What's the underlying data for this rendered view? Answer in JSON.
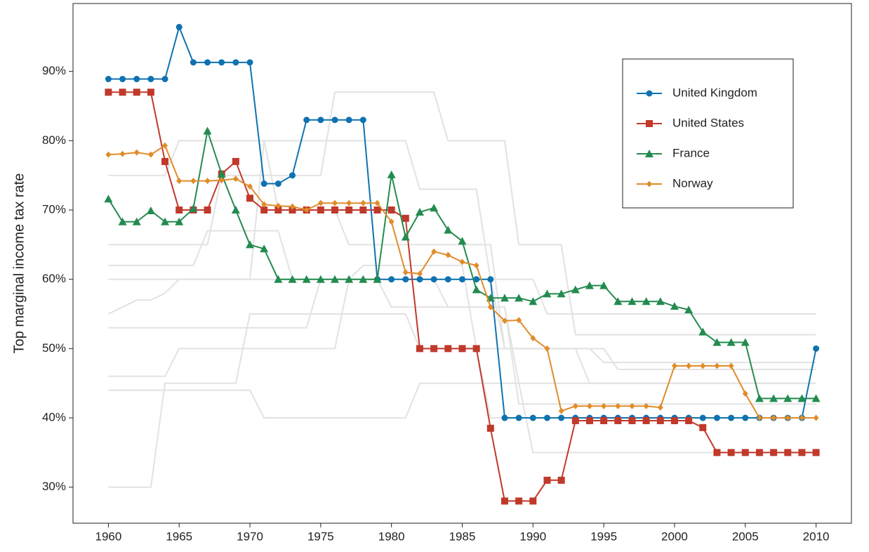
{
  "chart_data": {
    "type": "line",
    "y_label": "Top marginal income tax rate",
    "x": [
      1960,
      1961,
      1962,
      1963,
      1964,
      1965,
      1966,
      1967,
      1968,
      1969,
      1970,
      1971,
      1972,
      1973,
      1974,
      1975,
      1976,
      1977,
      1978,
      1979,
      1980,
      1981,
      1982,
      1983,
      1984,
      1985,
      1986,
      1987,
      1988,
      1989,
      1990,
      1991,
      1992,
      1993,
      1994,
      1995,
      1996,
      1997,
      1998,
      1999,
      2000,
      2001,
      2002,
      2003,
      2004,
      2005,
      2006,
      2007,
      2008,
      2009,
      2010
    ],
    "xlim": [
      1957.5,
      2012.5
    ],
    "xticks": [
      1960,
      1965,
      1970,
      1975,
      1980,
      1985,
      1990,
      1995,
      2000,
      2005,
      2010
    ],
    "ylim": [
      24.8,
      99.8
    ],
    "yticks": [
      {
        "value": 30,
        "label": "30%"
      },
      {
        "value": 40,
        "label": "40%"
      },
      {
        "value": 50,
        "label": "50%"
      },
      {
        "value": 60,
        "label": "60%"
      },
      {
        "value": 70,
        "label": "70%"
      },
      {
        "value": 80,
        "label": "80%"
      },
      {
        "value": 90,
        "label": "90%"
      }
    ],
    "legend_position": "upper right",
    "background_color": "#e2e2e2",
    "background_series": [
      {
        "values": [
          30,
          30,
          30,
          30,
          45,
          45,
          45,
          45,
          45,
          45,
          55,
          55,
          55,
          55,
          55,
          55,
          55,
          55,
          55,
          55,
          55,
          55,
          50,
          50,
          50,
          50,
          50,
          40,
          40,
          40,
          40,
          40,
          40,
          40,
          40,
          40,
          40,
          40,
          40,
          40,
          40,
          40,
          40,
          40,
          40,
          40,
          40,
          40,
          40,
          40,
          40
        ]
      },
      {
        "values": [
          44,
          44,
          44,
          44,
          44,
          44,
          44,
          44,
          44,
          44,
          44,
          40,
          40,
          40,
          40,
          40,
          40,
          40,
          40,
          40,
          40,
          40,
          45,
          45,
          45,
          45,
          45,
          45,
          45,
          45,
          35,
          35,
          35,
          35,
          35,
          35,
          35,
          35,
          35,
          35,
          35,
          35,
          35,
          35,
          35,
          35,
          35,
          35,
          35,
          35,
          35
        ]
      },
      {
        "values": [
          46,
          46,
          46,
          46,
          46,
          50,
          50,
          50,
          50,
          50,
          50,
          50,
          50,
          50,
          50,
          50,
          50,
          60,
          60,
          60,
          60,
          60,
          60,
          60,
          56,
          56,
          56,
          56,
          56,
          45,
          45,
          45,
          45,
          45,
          45,
          45,
          45,
          45,
          45,
          45,
          45,
          45,
          45,
          45,
          45,
          45,
          45,
          45,
          45,
          45,
          45
        ]
      },
      {
        "values": [
          53,
          53,
          53,
          53,
          53,
          53,
          53,
          53,
          53,
          53,
          53,
          53,
          53,
          53,
          53,
          60,
          60,
          60,
          60,
          60,
          60,
          60,
          60,
          60,
          60,
          60,
          60,
          60,
          50,
          50,
          50,
          50,
          50,
          50,
          50,
          48,
          48,
          48,
          48,
          48,
          48,
          48,
          48,
          48,
          48,
          48,
          48,
          48,
          48,
          48,
          48
        ]
      },
      {
        "values": [
          55,
          56,
          57,
          57,
          58,
          60,
          60,
          60,
          60,
          60,
          60,
          60,
          60,
          60,
          60,
          60,
          60,
          60,
          60,
          60,
          56,
          56,
          56,
          56,
          56,
          56,
          56,
          56,
          56,
          42,
          42,
          42,
          42,
          42,
          42,
          42,
          42,
          42,
          42,
          42,
          42,
          42,
          42,
          42,
          42,
          42,
          42,
          42,
          42,
          42,
          42
        ]
      },
      {
        "values": [
          60,
          60,
          60,
          60,
          60,
          60,
          60,
          60,
          60,
          60,
          60,
          80,
          80,
          80,
          80,
          80,
          80,
          80,
          80,
          80,
          80,
          80,
          73,
          73,
          73,
          73,
          73,
          60,
          60,
          60,
          60,
          55,
          55,
          55,
          55,
          55,
          55,
          55,
          55,
          55,
          55,
          55,
          55,
          55,
          55,
          55,
          55,
          55,
          55,
          55,
          55
        ]
      },
      {
        "values": [
          65,
          65,
          65,
          65,
          65,
          65,
          65,
          65,
          75,
          75,
          75,
          75,
          75,
          75,
          75,
          75,
          87,
          87,
          87,
          87,
          87,
          87,
          87,
          87,
          80,
          80,
          80,
          80,
          80,
          65,
          65,
          65,
          65,
          52,
          52,
          52,
          52,
          52,
          52,
          52,
          52,
          52,
          52,
          52,
          52,
          52,
          52,
          52,
          52,
          52,
          52
        ]
      },
      {
        "values": [
          75,
          75,
          75,
          75,
          75,
          80,
          80,
          80,
          80,
          80,
          80,
          80,
          70,
          70,
          70,
          70,
          70,
          65,
          65,
          65,
          65,
          65,
          65,
          65,
          65,
          65,
          65,
          65,
          50,
          50,
          50,
          50,
          50,
          50,
          45,
          45,
          45,
          45,
          45,
          45,
          45,
          45,
          45,
          45,
          45,
          45,
          45,
          45,
          45,
          45,
          45
        ]
      },
      {
        "values": [
          62,
          62,
          62,
          62,
          62,
          62,
          62,
          67,
          67,
          67,
          67,
          67,
          67,
          60,
          60,
          60,
          60,
          60,
          62,
          62,
          62,
          62,
          62,
          62,
          62,
          62,
          50,
          50,
          50,
          50,
          50,
          50,
          50,
          50,
          50,
          50,
          47,
          47,
          47,
          47,
          47,
          47,
          47,
          47,
          47,
          47,
          47,
          47,
          47,
          47,
          47
        ]
      }
    ],
    "series": [
      {
        "name": "United Kingdom",
        "color": "#0f72b0",
        "marker": "circle",
        "values": [
          88.9,
          88.9,
          88.9,
          88.9,
          88.9,
          96.4,
          91.3,
          91.3,
          91.3,
          91.3,
          91.3,
          73.8,
          73.8,
          75,
          83,
          83,
          83,
          83,
          83,
          60,
          60,
          60,
          60,
          60,
          60,
          60,
          60,
          60,
          40,
          40,
          40,
          40,
          40,
          40,
          40,
          40,
          40,
          40,
          40,
          40,
          40,
          40,
          40,
          40,
          40,
          40,
          40,
          40,
          40,
          40,
          50
        ]
      },
      {
        "name": "United States",
        "color": "#c0392b",
        "marker": "square",
        "values": [
          87,
          87,
          87,
          87,
          77,
          70,
          70,
          70,
          75.2,
          77,
          71.7,
          70,
          70,
          70,
          70,
          70,
          70,
          70,
          70,
          70,
          70,
          68.8,
          50,
          50,
          50,
          50,
          50,
          38.5,
          28,
          28,
          28,
          31,
          31,
          39.6,
          39.6,
          39.6,
          39.6,
          39.6,
          39.6,
          39.6,
          39.6,
          39.6,
          38.6,
          35,
          35,
          35,
          35,
          35,
          35,
          35,
          35
        ]
      },
      {
        "name": "France",
        "color": "#238b4f",
        "marker": "triangle",
        "values": [
          71.6,
          68.3,
          68.3,
          69.9,
          68.3,
          68.3,
          70.2,
          81.4,
          75.2,
          70,
          65,
          64.4,
          60,
          60,
          60,
          60,
          60,
          60,
          60,
          60,
          75.1,
          66.1,
          69.7,
          70.3,
          67.1,
          65.5,
          58.5,
          57.3,
          57.3,
          57.3,
          56.8,
          57.9,
          57.9,
          58.5,
          59.1,
          59.1,
          56.8,
          56.8,
          56.8,
          56.8,
          56.1,
          55.6,
          52.4,
          50.9,
          50.9,
          50.9,
          42.8,
          42.8,
          42.8,
          42.8,
          42.8
        ]
      },
      {
        "name": "Norway",
        "color": "#e08c2a",
        "marker": "diamond",
        "values": [
          78,
          78.1,
          78.3,
          78,
          79.3,
          74.2,
          74.2,
          74.2,
          74.3,
          74.5,
          73.4,
          70.8,
          70.6,
          70.5,
          70,
          71,
          71,
          71,
          71,
          71,
          68.3,
          61,
          60.8,
          64,
          63.5,
          62.5,
          62,
          56,
          54,
          54.1,
          51.5,
          50,
          41,
          41.7,
          41.7,
          41.7,
          41.7,
          41.7,
          41.7,
          41.5,
          47.5,
          47.5,
          47.5,
          47.5,
          47.5,
          43.5,
          40,
          40,
          40,
          40,
          40
        ]
      }
    ]
  }
}
